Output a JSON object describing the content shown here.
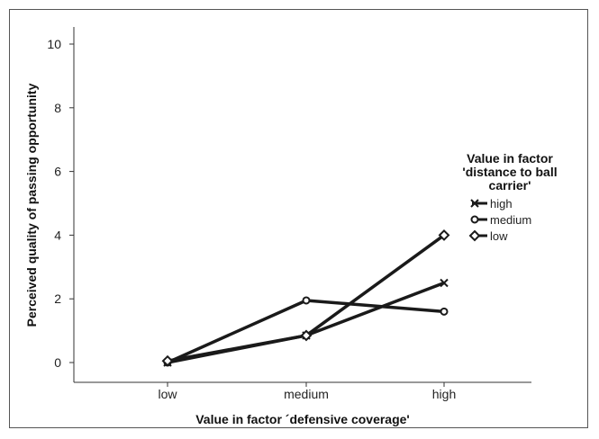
{
  "chart_data": {
    "type": "line",
    "categories": [
      "low",
      "medium",
      "high"
    ],
    "series": [
      {
        "name": "high",
        "marker": "x",
        "values": [
          0.0,
          0.85,
          2.5
        ]
      },
      {
        "name": "medium",
        "marker": "circle",
        "values": [
          0.0,
          1.95,
          1.6
        ]
      },
      {
        "name": "low",
        "marker": "diamond",
        "values": [
          0.05,
          0.85,
          4.0
        ]
      }
    ],
    "xlabel": "Value in factor ´defensive coverage'",
    "ylabel": "Perceived quality of passing opportunity",
    "ylim": [
      0,
      10
    ],
    "yticks": [
      0,
      2,
      4,
      6,
      8,
      10
    ],
    "grid": false,
    "legend": {
      "position": "right",
      "title_lines": [
        "Value in factor",
        "'distance to ball",
        "carrier'"
      ]
    },
    "line_color": "#1a1a1a"
  }
}
